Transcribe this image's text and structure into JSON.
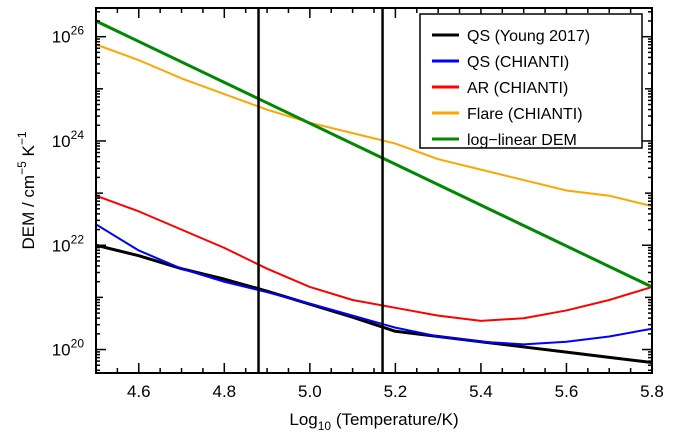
{
  "chart_data": {
    "type": "line",
    "xlabel": "Log10 (Temperature/K)",
    "ylabel": "DEM / cm-5 K-1",
    "xlim": [
      4.5,
      5.8
    ],
    "ylim_log10": [
      19.55,
      26.55
    ],
    "y_scale": "log",
    "x_ticks": [
      4.6,
      4.8,
      5.0,
      5.2,
      5.4,
      5.6,
      5.8
    ],
    "x_tick_labels": [
      "4.6",
      "4.8",
      "5.0",
      "5.2",
      "5.4",
      "5.6",
      "5.8"
    ],
    "y_ticks_log10": [
      20,
      22,
      24,
      26
    ],
    "y_tick_labels": [
      {
        "base": "10",
        "exp": "20"
      },
      {
        "base": "10",
        "exp": "22"
      },
      {
        "base": "10",
        "exp": "24"
      },
      {
        "base": "10",
        "exp": "26"
      }
    ],
    "vlines": [
      4.88,
      5.17
    ],
    "legend_position": "top-right",
    "series": [
      {
        "name": "QS (Young 2017)",
        "color": "#000000",
        "x": [
          4.5,
          4.6,
          4.7,
          4.8,
          4.9,
          5.0,
          5.1,
          5.2,
          5.3,
          5.4,
          5.5,
          5.6,
          5.7,
          5.8
        ],
        "log10_dem": [
          22.0,
          21.8,
          21.55,
          21.35,
          21.12,
          20.87,
          20.62,
          20.35,
          20.25,
          20.15,
          20.05,
          19.95,
          19.85,
          19.75
        ]
      },
      {
        "name": "QS (CHIANTI)",
        "color": "#0000ff",
        "x": [
          4.5,
          4.6,
          4.7,
          4.8,
          4.9,
          5.0,
          5.1,
          5.2,
          5.3,
          5.4,
          5.5,
          5.6,
          5.7,
          5.8
        ],
        "log10_dem": [
          22.4,
          21.9,
          21.55,
          21.3,
          21.1,
          20.88,
          20.65,
          20.42,
          20.25,
          20.15,
          20.1,
          20.15,
          20.25,
          20.4
        ]
      },
      {
        "name": "AR (CHIANTI)",
        "color": "#ff0000",
        "x": [
          4.5,
          4.6,
          4.7,
          4.8,
          4.9,
          5.0,
          5.1,
          5.2,
          5.3,
          5.4,
          5.5,
          5.6,
          5.7,
          5.8
        ],
        "log10_dem": [
          22.95,
          22.65,
          22.3,
          21.95,
          21.55,
          21.2,
          20.95,
          20.8,
          20.65,
          20.55,
          20.6,
          20.75,
          20.95,
          21.2
        ]
      },
      {
        "name": "Flare (CHIANTI)",
        "color": "#ffa500",
        "x": [
          4.5,
          4.6,
          4.7,
          4.8,
          4.9,
          5.0,
          5.1,
          5.2,
          5.3,
          5.4,
          5.5,
          5.6,
          5.7,
          5.8
        ],
        "log10_dem": [
          25.85,
          25.55,
          25.2,
          24.9,
          24.6,
          24.35,
          24.15,
          23.95,
          23.65,
          23.45,
          23.25,
          23.05,
          22.95,
          22.75
        ]
      },
      {
        "name": "log-linear DEM",
        "color": "#008800",
        "x": [
          4.5,
          5.8
        ],
        "log10_dem": [
          26.3,
          21.2
        ]
      }
    ]
  }
}
